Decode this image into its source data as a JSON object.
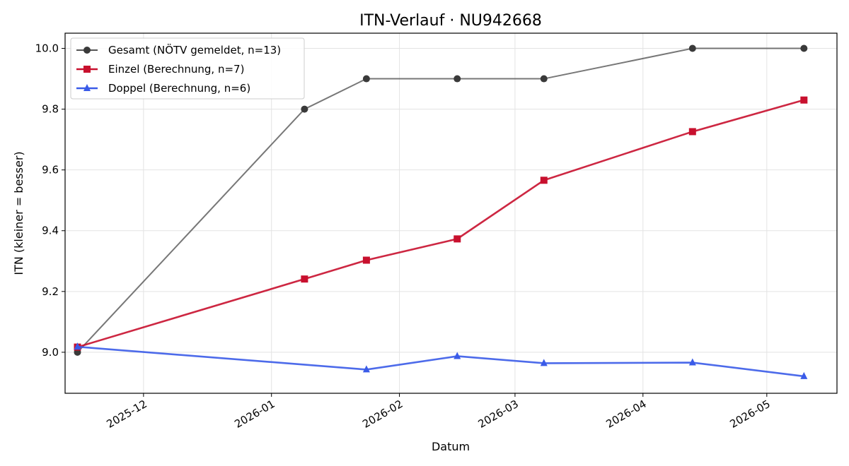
{
  "chart_data": {
    "type": "line",
    "title": "ITN-Verlauf · NU942668",
    "xlabel": "Datum",
    "ylabel": "ITN  (kleiner = besser)",
    "x_ticks": [
      "2025-12",
      "2026-01",
      "2026-02",
      "2026-03",
      "2026-04",
      "2026-05"
    ],
    "y_ticks": [
      "9.0",
      "9.2",
      "9.4",
      "9.6",
      "9.8",
      "10.0"
    ],
    "xlim": [
      "2025-11-12",
      "2026-05-18"
    ],
    "ylim": [
      8.865,
      10.05
    ],
    "grid": true,
    "legend_position": "top-left",
    "series": [
      {
        "name": "Gesamt (NÖTV gemeldet, n=13)",
        "color": "#555555",
        "marker": "circle",
        "x": [
          "2025-11-15",
          "2026-01-09",
          "2026-01-24",
          "2026-02-15",
          "2026-03-08",
          "2026-04-13",
          "2026-05-10"
        ],
        "y": [
          9.0,
          9.8,
          9.9,
          9.9,
          9.9,
          10.0,
          10.0
        ]
      },
      {
        "name": "Einzel (Berechnung, n=7)",
        "color": "#c8102e",
        "marker": "square",
        "x": [
          "2025-11-15",
          "2026-01-09",
          "2026-01-24",
          "2026-02-15",
          "2026-03-08",
          "2026-04-13",
          "2026-05-10"
        ],
        "y": [
          9.017,
          9.241,
          9.303,
          9.373,
          9.566,
          9.726,
          9.83
        ]
      },
      {
        "name": "Doppel (Berechnung, n=6)",
        "color": "#3a5be8",
        "marker": "triangle",
        "x": [
          "2025-11-15",
          "2026-01-24",
          "2026-02-15",
          "2026-03-08",
          "2026-04-13",
          "2026-05-10"
        ],
        "y": [
          9.018,
          8.943,
          8.987,
          8.964,
          8.966,
          8.921
        ]
      }
    ]
  }
}
